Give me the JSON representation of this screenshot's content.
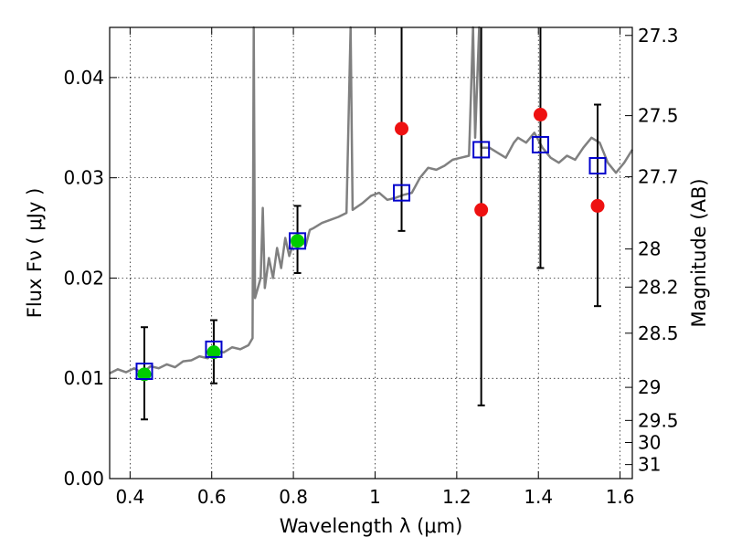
{
  "chart_data": {
    "type": "scatter",
    "xlabel": "Wavelength  λ (μm)",
    "ylabel_left": "Flux  Fν  ( μJy )",
    "ylabel_right": "Magnitude (AB)",
    "xlim": [
      0.35,
      1.63
    ],
    "ylim": [
      0.0,
      0.045
    ],
    "grid": true,
    "x_ticks": [
      0.4,
      0.6,
      0.8,
      1.0,
      1.2,
      1.4,
      1.6
    ],
    "x_tick_labels": [
      "0.4",
      "0.6",
      "0.8",
      "1",
      "1.2",
      "1.4",
      "1.6"
    ],
    "y_ticks": [
      0.0,
      0.01,
      0.02,
      0.03,
      0.04
    ],
    "y_tick_labels": [
      "0.00",
      "0.01",
      "0.02",
      "0.03",
      "0.04"
    ],
    "right_ticks": [
      {
        "label": "27.3",
        "flux": 0.0442
      },
      {
        "label": "27.5",
        "flux": 0.0362
      },
      {
        "label": "27.7",
        "flux": 0.0301
      },
      {
        "label": "28",
        "flux": 0.0229
      },
      {
        "label": "28.2",
        "flux": 0.0191
      },
      {
        "label": "28.5",
        "flux": 0.0145
      },
      {
        "label": "29",
        "flux": 0.0091
      },
      {
        "label": "29.5",
        "flux": 0.0058
      },
      {
        "label": "30",
        "flux": 0.0036
      },
      {
        "label": "31",
        "flux": 0.0014
      }
    ],
    "series": [
      {
        "marker": "line",
        "color": "#808080",
        "points": [
          [
            0.35,
            0.0105
          ],
          [
            0.37,
            0.0109
          ],
          [
            0.39,
            0.0106
          ],
          [
            0.41,
            0.011
          ],
          [
            0.43,
            0.0105
          ],
          [
            0.45,
            0.0112
          ],
          [
            0.47,
            0.011
          ],
          [
            0.49,
            0.0114
          ],
          [
            0.51,
            0.0111
          ],
          [
            0.53,
            0.0117
          ],
          [
            0.55,
            0.0118
          ],
          [
            0.57,
            0.0122
          ],
          [
            0.59,
            0.012
          ],
          [
            0.61,
            0.0127
          ],
          [
            0.63,
            0.0126
          ],
          [
            0.65,
            0.0131
          ],
          [
            0.67,
            0.0129
          ],
          [
            0.69,
            0.0133
          ],
          [
            0.7,
            0.014
          ],
          [
            0.703,
            0.045
          ],
          [
            0.706,
            0.018
          ],
          [
            0.72,
            0.02
          ],
          [
            0.725,
            0.027
          ],
          [
            0.73,
            0.019
          ],
          [
            0.74,
            0.022
          ],
          [
            0.75,
            0.02
          ],
          [
            0.76,
            0.023
          ],
          [
            0.77,
            0.021
          ],
          [
            0.78,
            0.024
          ],
          [
            0.79,
            0.0222
          ],
          [
            0.8,
            0.0235
          ],
          [
            0.81,
            0.0243
          ],
          [
            0.82,
            0.024
          ],
          [
            0.83,
            0.0232
          ],
          [
            0.84,
            0.0248
          ],
          [
            0.85,
            0.025
          ],
          [
            0.87,
            0.0255
          ],
          [
            0.89,
            0.0258
          ],
          [
            0.91,
            0.0261
          ],
          [
            0.93,
            0.0265
          ],
          [
            0.94,
            0.045
          ],
          [
            0.945,
            0.0268
          ],
          [
            0.97,
            0.0275
          ],
          [
            0.99,
            0.0282
          ],
          [
            1.01,
            0.0285
          ],
          [
            1.03,
            0.0278
          ],
          [
            1.05,
            0.028
          ],
          [
            1.07,
            0.0283
          ],
          [
            1.09,
            0.0285
          ],
          [
            1.11,
            0.03
          ],
          [
            1.13,
            0.031
          ],
          [
            1.15,
            0.0308
          ],
          [
            1.17,
            0.0312
          ],
          [
            1.19,
            0.0318
          ],
          [
            1.21,
            0.032
          ],
          [
            1.23,
            0.0322
          ],
          [
            1.24,
            0.045
          ],
          [
            1.245,
            0.034
          ],
          [
            1.255,
            0.045
          ],
          [
            1.26,
            0.033
          ],
          [
            1.28,
            0.033
          ],
          [
            1.3,
            0.0325
          ],
          [
            1.32,
            0.032
          ],
          [
            1.34,
            0.0335
          ],
          [
            1.35,
            0.034
          ],
          [
            1.37,
            0.0335
          ],
          [
            1.39,
            0.0345
          ],
          [
            1.41,
            0.033
          ],
          [
            1.43,
            0.032
          ],
          [
            1.45,
            0.0315
          ],
          [
            1.47,
            0.0322
          ],
          [
            1.49,
            0.0318
          ],
          [
            1.51,
            0.033
          ],
          [
            1.53,
            0.034
          ],
          [
            1.55,
            0.0335
          ],
          [
            1.57,
            0.0315
          ],
          [
            1.59,
            0.0305
          ],
          [
            1.61,
            0.0315
          ],
          [
            1.63,
            0.0328
          ]
        ]
      },
      {
        "marker": "circle",
        "color": "#00cc00",
        "points": [
          {
            "x": 0.435,
            "y": 0.0104,
            "yerr_low": 0.0059,
            "yerr_high": 0.0151
          },
          {
            "x": 0.605,
            "y": 0.0126,
            "yerr_low": 0.0095,
            "yerr_high": 0.0158
          },
          {
            "x": 0.81,
            "y": 0.0237,
            "yerr_low": 0.0205,
            "yerr_high": 0.0272
          }
        ]
      },
      {
        "marker": "circle",
        "color": "#ee1111",
        "points": [
          {
            "x": 1.065,
            "y": 0.0349,
            "yerr_low": 0.0247,
            "yerr_high": 0.045
          },
          {
            "x": 1.26,
            "y": 0.0268,
            "yerr_low": 0.0073,
            "yerr_high": 0.045
          },
          {
            "x": 1.405,
            "y": 0.0363,
            "yerr_low": 0.021,
            "yerr_high": 0.045
          },
          {
            "x": 1.545,
            "y": 0.0272,
            "yerr_low": 0.0172,
            "yerr_high": 0.0373
          }
        ]
      },
      {
        "marker": "square",
        "color": "#0000cc",
        "points": [
          {
            "x": 0.435,
            "y": 0.0107
          },
          {
            "x": 0.605,
            "y": 0.0129
          },
          {
            "x": 0.81,
            "y": 0.0237
          },
          {
            "x": 1.065,
            "y": 0.0285
          },
          {
            "x": 1.26,
            "y": 0.0328
          },
          {
            "x": 1.405,
            "y": 0.0333
          },
          {
            "x": 1.545,
            "y": 0.0312
          }
        ]
      }
    ]
  }
}
